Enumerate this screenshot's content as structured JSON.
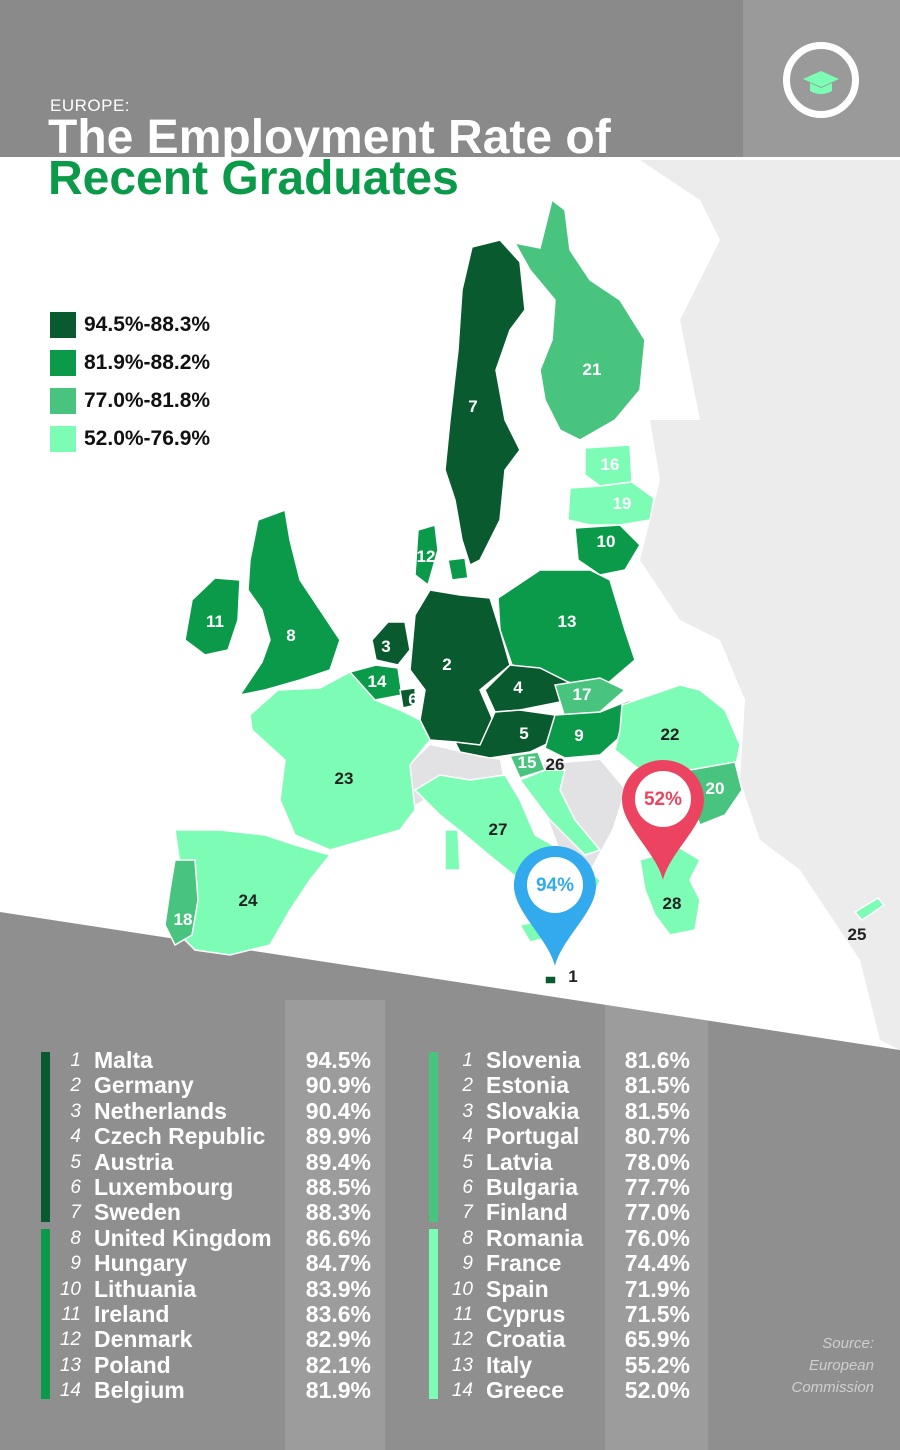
{
  "header": {
    "eyebrow": "EUROPE:",
    "title_line1": "The Employment Rate of",
    "title_line2": "Recent Graduates",
    "logo_icon": "graduation-cap-icon"
  },
  "legend": [
    {
      "label": "94.5%-88.3%",
      "color": "#0a5a2f"
    },
    {
      "label": "81.9%-88.2%",
      "color": "#0a9a49"
    },
    {
      "label": "77.0%-81.8%",
      "color": "#48c47f"
    },
    {
      "label": "52.0%-76.9%",
      "color": "#7dfcb5"
    }
  ],
  "map_labels": [
    "1",
    "2",
    "3",
    "4",
    "5",
    "6",
    "7",
    "8",
    "9",
    "10",
    "11",
    "12",
    "13",
    "14",
    "15",
    "16",
    "17",
    "18",
    "19",
    "20",
    "21",
    "22",
    "23",
    "24",
    "25",
    "26",
    "27",
    "28"
  ],
  "pins": [
    {
      "label": "94%",
      "color": "#33aaee",
      "marks": "Malta"
    },
    {
      "label": "52%",
      "color": "#ec4460",
      "marks": "Greece"
    }
  ],
  "rankings_left": [
    {
      "rank": "1",
      "country": "Malta",
      "rate": "94.5%"
    },
    {
      "rank": "2",
      "country": "Germany",
      "rate": "90.9%"
    },
    {
      "rank": "3",
      "country": "Netherlands",
      "rate": "90.4%"
    },
    {
      "rank": "4",
      "country": "Czech Republic",
      "rate": "89.9%"
    },
    {
      "rank": "5",
      "country": "Austria",
      "rate": "89.4%"
    },
    {
      "rank": "6",
      "country": "Luxembourg",
      "rate": "88.5%"
    },
    {
      "rank": "7",
      "country": "Sweden",
      "rate": "88.3%"
    },
    {
      "rank": "8",
      "country": "United Kingdom",
      "rate": "86.6%"
    },
    {
      "rank": "9",
      "country": "Hungary",
      "rate": "84.7%"
    },
    {
      "rank": "10",
      "country": "Lithuania",
      "rate": "83.9%"
    },
    {
      "rank": "11",
      "country": "Ireland",
      "rate": "83.6%"
    },
    {
      "rank": "12",
      "country": "Denmark",
      "rate": "82.9%"
    },
    {
      "rank": "13",
      "country": "Poland",
      "rate": "82.1%"
    },
    {
      "rank": "14",
      "country": "Belgium",
      "rate": "81.9%"
    }
  ],
  "rankings_right": [
    {
      "rank": "1",
      "country": "Slovenia",
      "rate": "81.6%"
    },
    {
      "rank": "2",
      "country": "Estonia",
      "rate": "81.5%"
    },
    {
      "rank": "3",
      "country": "Slovakia",
      "rate": "81.5%"
    },
    {
      "rank": "4",
      "country": "Portugal",
      "rate": "80.7%"
    },
    {
      "rank": "5",
      "country": "Latvia",
      "rate": "78.0%"
    },
    {
      "rank": "6",
      "country": "Bulgaria",
      "rate": "77.7%"
    },
    {
      "rank": "7",
      "country": "Finland",
      "rate": "77.0%"
    },
    {
      "rank": "8",
      "country": "Romania",
      "rate": "76.0%"
    },
    {
      "rank": "9",
      "country": "France",
      "rate": "74.4%"
    },
    {
      "rank": "10",
      "country": "Spain",
      "rate": "71.9%"
    },
    {
      "rank": "11",
      "country": "Cyprus",
      "rate": "71.5%"
    },
    {
      "rank": "12",
      "country": "Croatia",
      "rate": "65.9%"
    },
    {
      "rank": "13",
      "country": "Italy",
      "rate": "55.2%"
    },
    {
      "rank": "14",
      "country": "Greece",
      "rate": "52.0%"
    }
  ],
  "source": {
    "line1": "Source:",
    "line2": "European",
    "line3": "Commission"
  }
}
